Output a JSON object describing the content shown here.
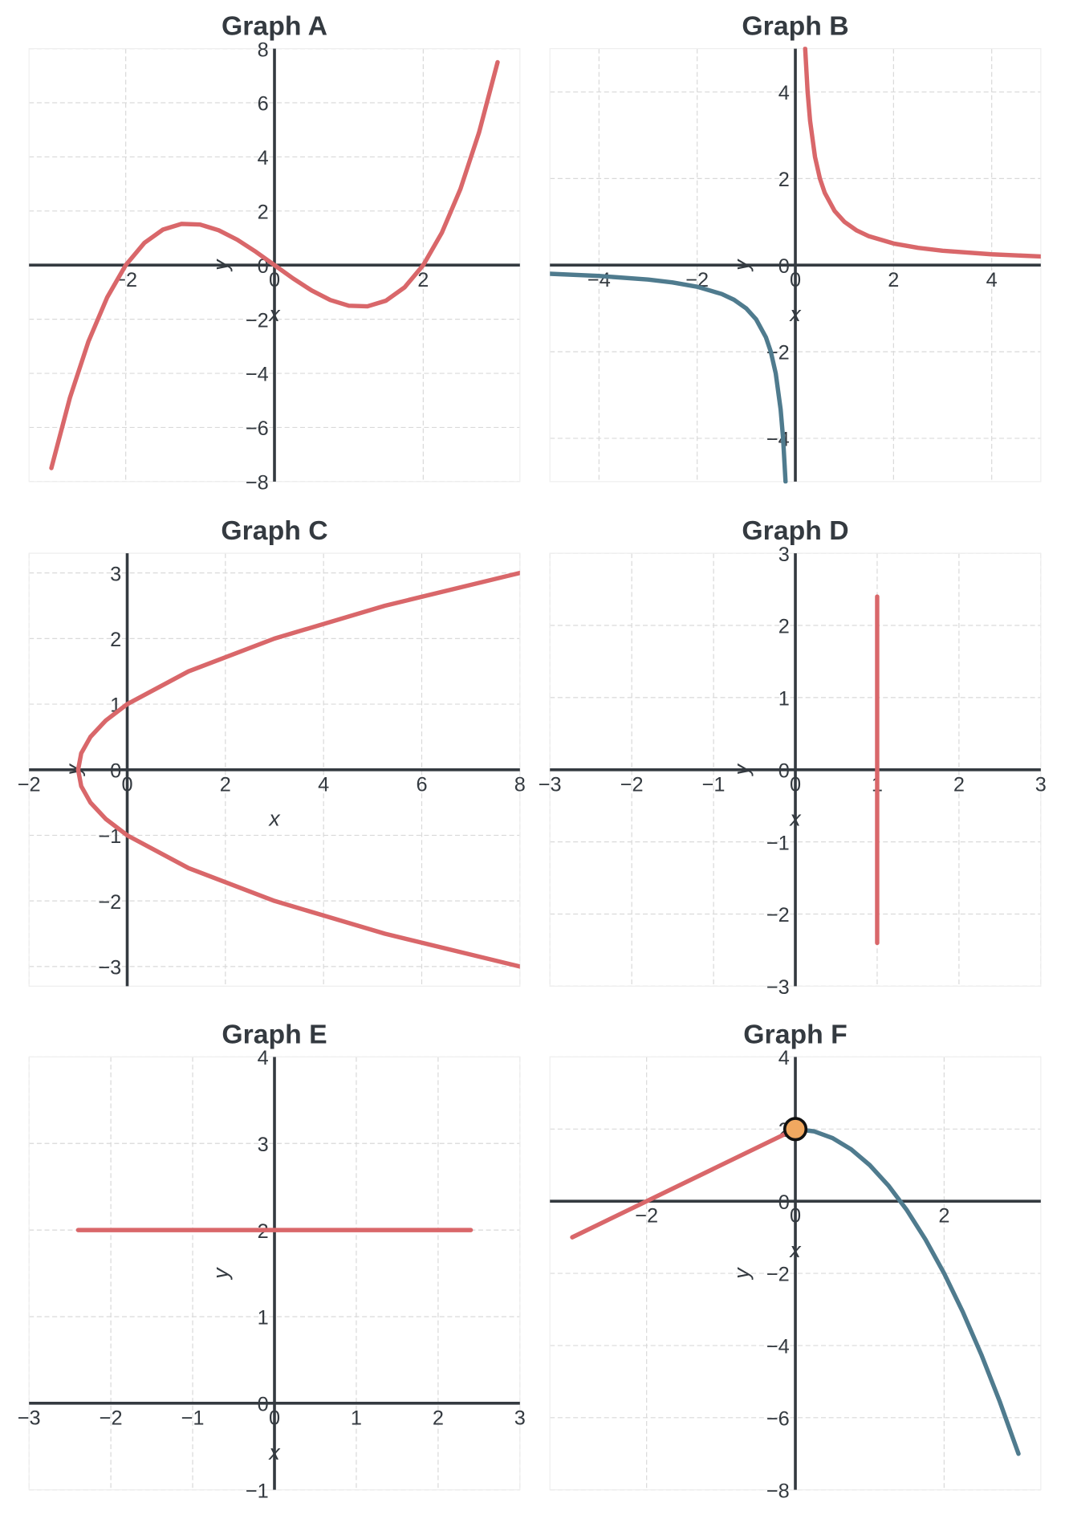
{
  "chart_data": [
    {
      "type": "line",
      "title": "Graph A",
      "x_label": "x",
      "y_label": "y",
      "grid": true,
      "xlim": [
        -3.3,
        3.3
      ],
      "ylim": [
        -8,
        8
      ],
      "xticks": [
        {
          "value": -2,
          "label": "−2"
        },
        0,
        2
      ],
      "yticks": [
        {
          "value": -8,
          "label": "−8"
        },
        {
          "value": -6,
          "label": "−6"
        },
        {
          "value": -4,
          "label": "−4"
        },
        {
          "value": -2,
          "label": "−2"
        },
        0,
        2,
        4,
        6,
        8
      ],
      "series": [
        {
          "color": "#d9676a",
          "x": [
            -3,
            -2.75,
            -2.5,
            -2.25,
            -2,
            -1.75,
            -1.5,
            -1.25,
            -1,
            -0.75,
            -0.5,
            -0.25,
            0,
            0.25,
            0.5,
            0.75,
            1,
            1.25,
            1.5,
            1.75,
            2,
            2.25,
            2.5,
            2.75,
            3
          ],
          "values": [
            -7.5,
            -4.898,
            -2.8125,
            -1.1953,
            0,
            0.8203,
            1.3125,
            1.5234,
            1.5,
            1.2891,
            0.9375,
            0.4922,
            0,
            -0.4922,
            -0.9375,
            -1.2891,
            -1.5,
            -1.5234,
            -1.3125,
            -0.8203,
            0,
            1.1953,
            2.8125,
            4.898,
            7.5
          ]
        }
      ]
    },
    {
      "type": "line",
      "title": "Graph B",
      "x_label": "x",
      "y_label": "y",
      "grid": true,
      "xlim": [
        -5,
        5
      ],
      "ylim": [
        -5,
        5
      ],
      "xticks": [
        {
          "value": -4,
          "label": "−4"
        },
        {
          "value": -2,
          "label": "−2"
        },
        0,
        2,
        4
      ],
      "yticks": [
        {
          "value": -4,
          "label": "−4"
        },
        {
          "value": -2,
          "label": "−2"
        },
        0,
        2,
        4
      ],
      "series": [
        {
          "color": "#d9676a",
          "x": [
            0.2,
            0.25,
            0.3,
            0.4,
            0.5,
            0.6,
            0.8,
            1,
            1.25,
            1.5,
            2,
            2.5,
            3,
            4,
            5
          ],
          "values": [
            5,
            4,
            3.333,
            2.5,
            2,
            1.667,
            1.25,
            1,
            0.8,
            0.667,
            0.5,
            0.4,
            0.333,
            0.25,
            0.2
          ]
        },
        {
          "color": "#4f7b8e",
          "x": [
            -5,
            -4,
            -3,
            -2.5,
            -2,
            -1.5,
            -1.25,
            -1,
            -0.8,
            -0.6,
            -0.5,
            -0.4,
            -0.3,
            -0.25,
            -0.2
          ],
          "values": [
            -0.2,
            -0.25,
            -0.333,
            -0.4,
            -0.5,
            -0.667,
            -0.8,
            -1,
            -1.25,
            -1.667,
            -2,
            -2.5,
            -3.333,
            -4,
            -5
          ]
        }
      ]
    },
    {
      "type": "line",
      "title": "Graph C",
      "x_label": "x",
      "y_label": "y",
      "grid": true,
      "xlim": [
        -2,
        8
      ],
      "ylim": [
        -3.3,
        3.3
      ],
      "xticks": [
        {
          "value": -2,
          "label": "−2"
        },
        0,
        2,
        4,
        6,
        8
      ],
      "yticks": [
        {
          "value": -3,
          "label": "−3"
        },
        {
          "value": -2,
          "label": "−2"
        },
        {
          "value": -1,
          "label": "−1"
        },
        0,
        1,
        2,
        3
      ],
      "series": [
        {
          "color": "#d9676a",
          "x": [
            8,
            5.25,
            3,
            1.25,
            0,
            -0.4375,
            -0.75,
            -0.9375,
            -1,
            -0.9375,
            -0.75,
            -0.4375,
            0,
            1.25,
            3,
            5.25,
            8
          ],
          "values": [
            -3,
            -2.5,
            -2,
            -1.5,
            -1,
            -0.75,
            -0.5,
            -0.25,
            0,
            0.25,
            0.5,
            0.75,
            1,
            1.5,
            2,
            2.5,
            3
          ]
        }
      ]
    },
    {
      "type": "line",
      "title": "Graph D",
      "x_label": "x",
      "y_label": "y",
      "grid": true,
      "xlim": [
        -3,
        3
      ],
      "ylim": [
        -3,
        3
      ],
      "xticks": [
        {
          "value": -3,
          "label": "−3"
        },
        {
          "value": -2,
          "label": "−2"
        },
        {
          "value": -1,
          "label": "−1"
        },
        0,
        1,
        2,
        3
      ],
      "yticks": [
        {
          "value": -3,
          "label": "−3"
        },
        {
          "value": -2,
          "label": "−2"
        },
        {
          "value": -1,
          "label": "−1"
        },
        0,
        1,
        2,
        3
      ],
      "series": [
        {
          "color": "#d9676a",
          "x": [
            1,
            1
          ],
          "values": [
            -2.4,
            2.4
          ]
        }
      ]
    },
    {
      "type": "line",
      "title": "Graph E",
      "x_label": "x",
      "y_label": "y",
      "grid": true,
      "xlim": [
        -3,
        3
      ],
      "ylim": [
        -1,
        4
      ],
      "xticks": [
        {
          "value": -3,
          "label": "−3"
        },
        {
          "value": -2,
          "label": "−2"
        },
        {
          "value": -1,
          "label": "−1"
        },
        0,
        1,
        2,
        3
      ],
      "yticks": [
        {
          "value": -1,
          "label": "−1"
        },
        0,
        1,
        2,
        3,
        4
      ],
      "series": [
        {
          "color": "#d9676a",
          "x": [
            -2.4,
            2.4
          ],
          "values": [
            2,
            2
          ]
        }
      ]
    },
    {
      "type": "line",
      "title": "Graph F",
      "x_label": "x",
      "y_label": "y",
      "grid": true,
      "xlim": [
        -3.3,
        3.3
      ],
      "ylim": [
        -8,
        4
      ],
      "xticks": [
        {
          "value": -2,
          "label": "−2"
        },
        0,
        2
      ],
      "yticks": [
        {
          "value": -8,
          "label": "−8"
        },
        {
          "value": -6,
          "label": "−6"
        },
        {
          "value": -4,
          "label": "−4"
        },
        {
          "value": -2,
          "label": "−2"
        },
        0,
        2,
        4
      ],
      "series": [
        {
          "color": "#d9676a",
          "x": [
            -3,
            0
          ],
          "values": [
            -1,
            2
          ]
        },
        {
          "color": "#4f7b8e",
          "x": [
            0,
            0.25,
            0.5,
            0.75,
            1,
            1.25,
            1.5,
            1.75,
            2,
            2.25,
            2.5,
            2.75,
            3
          ],
          "values": [
            2,
            1.9375,
            1.75,
            1.4375,
            1,
            0.4375,
            -0.25,
            -1.0625,
            -2,
            -3.0625,
            -4.25,
            -5.5625,
            -7
          ]
        }
      ],
      "markers": [
        {
          "x": 0,
          "y": 2,
          "color": "#f0a860"
        }
      ]
    }
  ]
}
